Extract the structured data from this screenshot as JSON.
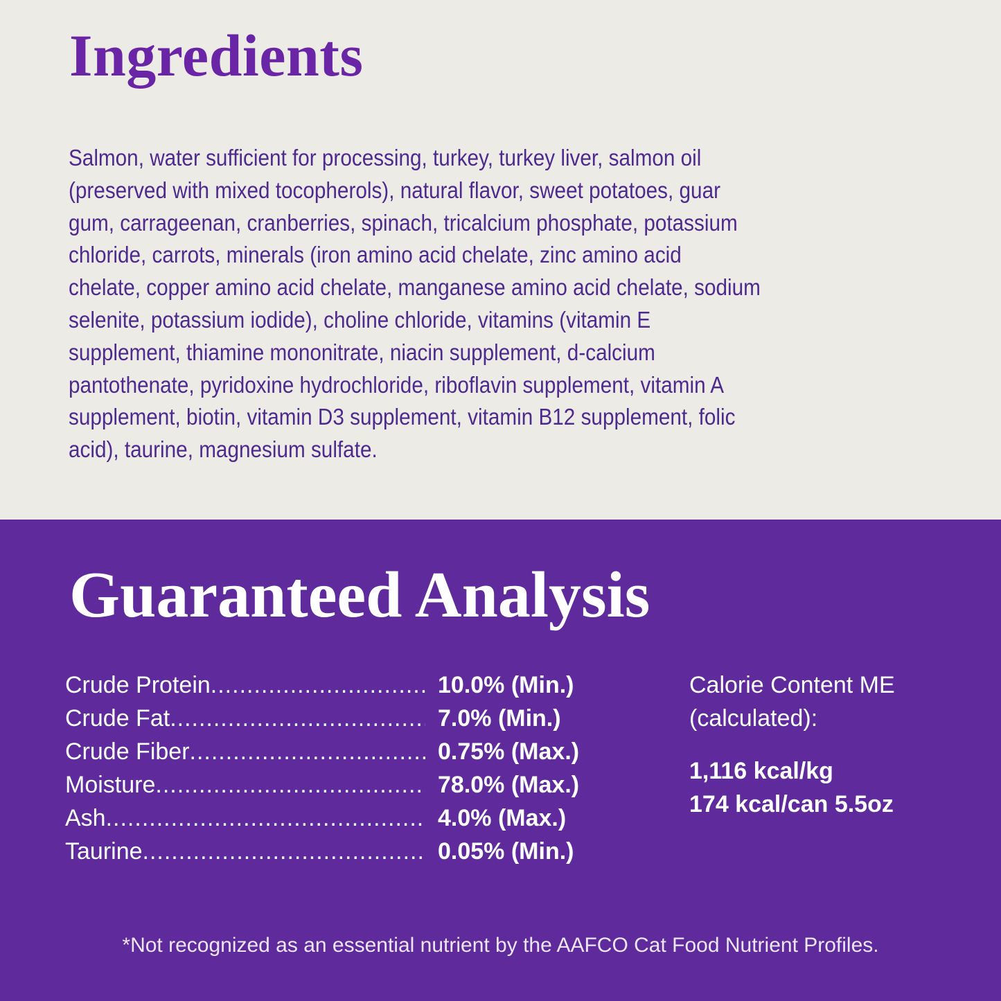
{
  "ingredients": {
    "title": "Ingredients",
    "lines": [
      "Salmon, water sufficient for processing, turkey, turkey liver, salmon oil",
      "(preserved with mixed tocopherols), natural flavor, sweet potatoes, guar",
      "gum, carrageenan, cranberries, spinach, tricalcium phosphate, potassium",
      "chloride, carrots, minerals (iron amino acid chelate, zinc amino acid",
      "chelate, copper amino acid chelate, manganese amino acid chelate, sodium",
      "selenite, potassium iodide), choline chloride, vitamins (vitamin E",
      "supplement, thiamine mononitrate, niacin supplement, d-calcium",
      "pantothenate, pyridoxine hydrochloride, riboflavin supplement, vitamin A",
      "supplement, biotin, vitamin D3 supplement, vitamin B12 supplement, folic",
      "acid),  taurine, magnesium sulfate."
    ]
  },
  "analysis": {
    "title": "Guaranteed Analysis",
    "rows": [
      {
        "label": "Crude Protein",
        "value": "10.0% (Min.)"
      },
      {
        "label": "Crude Fat",
        "value": "7.0% (Min.)"
      },
      {
        "label": "Crude Fiber",
        "value": "0.75% (Max.)"
      },
      {
        "label": "Moisture",
        "value": "78.0% (Max.)"
      },
      {
        "label": "Ash",
        "value": "4.0% (Max.)"
      },
      {
        "label": "Taurine",
        "value": "0.05% (Min.)"
      }
    ],
    "calorie": {
      "heading_1": "Calorie Content ME",
      "heading_2": "(calculated):",
      "per_kg": "1,116 kcal/kg",
      "per_can": "174 kcal/can 5.5oz"
    },
    "footnote": "*Not recognized as an essential nutrient by the AAFCO Cat Food Nutrient Profiles."
  },
  "colors": {
    "background": "#ecebe6",
    "panel": "#5e2a9c",
    "heading": "#6a24a6",
    "text": "#4e2a8e"
  }
}
